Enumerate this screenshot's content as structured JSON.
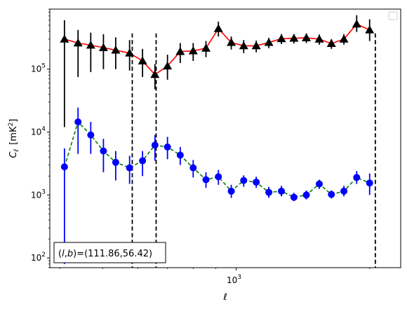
{
  "chart_data": {
    "type": "scatter",
    "title": "",
    "xscale": "log",
    "yscale": "log",
    "xlim": [
      380,
      2350
    ],
    "ylim": [
      70,
      900000
    ],
    "xlabel": "ℓ",
    "ylabel_main": "C",
    "ylabel_sub": "ℓ",
    "ylabel_unit": "[mK",
    "ylabel_unit_sup": "2",
    "ylabel_unit_end": "]",
    "x_ticks": [
      {
        "value": 1000,
        "base": "10",
        "exp": "3"
      }
    ],
    "y_ticks": [
      {
        "value": 100,
        "base": "10",
        "exp": "2"
      },
      {
        "value": 1000,
        "base": "10",
        "exp": "3"
      },
      {
        "value": 10000,
        "base": "10",
        "exp": "4"
      },
      {
        "value": 100000,
        "base": "10",
        "exp": "5"
      }
    ],
    "vlines": [
      583,
      660,
      2060
    ],
    "annotation": {
      "prefix": "(",
      "var1": "l",
      "sep": ",",
      "var2": "b",
      "suffix": ")=(111.86,56.42)"
    },
    "legend": {
      "placement": "top-right",
      "entries": []
    },
    "series": [
      {
        "marker": "triangle",
        "marker_color": "#000000",
        "line_color": "#ff0000",
        "line_style": "solid",
        "errorbar_color": "#000000",
        "points": [
          {
            "x": 410,
            "y": 300000,
            "lo": 12000,
            "hi": 600000
          },
          {
            "x": 440,
            "y": 260000,
            "lo": 75000,
            "hi": 420000
          },
          {
            "x": 470,
            "y": 240000,
            "lo": 90000,
            "hi": 380000
          },
          {
            "x": 502,
            "y": 220000,
            "lo": 100000,
            "hi": 360000
          },
          {
            "x": 535,
            "y": 200000,
            "lo": 100000,
            "hi": 320000
          },
          {
            "x": 575,
            "y": 180000,
            "lo": 95000,
            "hi": 290000
          },
          {
            "x": 615,
            "y": 135000,
            "lo": 75000,
            "hi": 210000
          },
          {
            "x": 656,
            "y": 82000,
            "lo": 48000,
            "hi": 120000
          },
          {
            "x": 700,
            "y": 112000,
            "lo": 68000,
            "hi": 170000
          },
          {
            "x": 748,
            "y": 190000,
            "lo": 125000,
            "hi": 260000
          },
          {
            "x": 800,
            "y": 195000,
            "lo": 135000,
            "hi": 260000
          },
          {
            "x": 855,
            "y": 215000,
            "lo": 155000,
            "hi": 280000
          },
          {
            "x": 912,
            "y": 440000,
            "lo": 330000,
            "hi": 570000
          },
          {
            "x": 975,
            "y": 265000,
            "lo": 205000,
            "hi": 330000
          },
          {
            "x": 1040,
            "y": 235000,
            "lo": 180000,
            "hi": 290000
          },
          {
            "x": 1110,
            "y": 235000,
            "lo": 185000,
            "hi": 285000
          },
          {
            "x": 1185,
            "y": 265000,
            "lo": 215000,
            "hi": 315000
          },
          {
            "x": 1265,
            "y": 305000,
            "lo": 250000,
            "hi": 360000
          },
          {
            "x": 1350,
            "y": 310000,
            "lo": 255000,
            "hi": 360000
          },
          {
            "x": 1440,
            "y": 315000,
            "lo": 260000,
            "hi": 370000
          },
          {
            "x": 1540,
            "y": 300000,
            "lo": 245000,
            "hi": 355000
          },
          {
            "x": 1640,
            "y": 255000,
            "lo": 210000,
            "hi": 300000
          },
          {
            "x": 1750,
            "y": 300000,
            "lo": 245000,
            "hi": 360000
          },
          {
            "x": 1870,
            "y": 520000,
            "lo": 390000,
            "hi": 720000
          },
          {
            "x": 2000,
            "y": 420000,
            "lo": 280000,
            "hi": 620000
          }
        ]
      },
      {
        "marker": "circle",
        "marker_color": "#0000ff",
        "line_color": "#008000",
        "line_style": "dashed",
        "errorbar_color": "#0000ff",
        "points": [
          {
            "x": 410,
            "y": 2800,
            "lo": 80,
            "hi": 5500
          },
          {
            "x": 440,
            "y": 14500,
            "lo": 4500,
            "hi": 24500
          },
          {
            "x": 470,
            "y": 9000,
            "lo": 4500,
            "hi": 14500
          },
          {
            "x": 502,
            "y": 5000,
            "lo": 2300,
            "hi": 7800
          },
          {
            "x": 535,
            "y": 3300,
            "lo": 1700,
            "hi": 5000
          },
          {
            "x": 575,
            "y": 2700,
            "lo": 1500,
            "hi": 4200
          },
          {
            "x": 615,
            "y": 3500,
            "lo": 2000,
            "hi": 5000
          },
          {
            "x": 656,
            "y": 6200,
            "lo": 3500,
            "hi": 9000
          },
          {
            "x": 700,
            "y": 5800,
            "lo": 3700,
            "hi": 8400
          },
          {
            "x": 748,
            "y": 4300,
            "lo": 3000,
            "hi": 5800
          },
          {
            "x": 800,
            "y": 2700,
            "lo": 1900,
            "hi": 3600
          },
          {
            "x": 855,
            "y": 1750,
            "lo": 1300,
            "hi": 2300
          },
          {
            "x": 912,
            "y": 1950,
            "lo": 1450,
            "hi": 2500
          },
          {
            "x": 975,
            "y": 1150,
            "lo": 900,
            "hi": 1450
          },
          {
            "x": 1040,
            "y": 1700,
            "lo": 1350,
            "hi": 2050
          },
          {
            "x": 1110,
            "y": 1600,
            "lo": 1300,
            "hi": 1950
          },
          {
            "x": 1185,
            "y": 1100,
            "lo": 900,
            "hi": 1350
          },
          {
            "x": 1265,
            "y": 1150,
            "lo": 950,
            "hi": 1400
          },
          {
            "x": 1350,
            "y": 920,
            "lo": 800,
            "hi": 1080
          },
          {
            "x": 1440,
            "y": 1000,
            "lo": 850,
            "hi": 1180
          },
          {
            "x": 1540,
            "y": 1500,
            "lo": 1250,
            "hi": 1750
          },
          {
            "x": 1640,
            "y": 1020,
            "lo": 880,
            "hi": 1180
          },
          {
            "x": 1750,
            "y": 1150,
            "lo": 950,
            "hi": 1400
          },
          {
            "x": 1870,
            "y": 1900,
            "lo": 1500,
            "hi": 2400
          },
          {
            "x": 2000,
            "y": 1550,
            "lo": 1000,
            "hi": 2200
          }
        ]
      }
    ]
  }
}
